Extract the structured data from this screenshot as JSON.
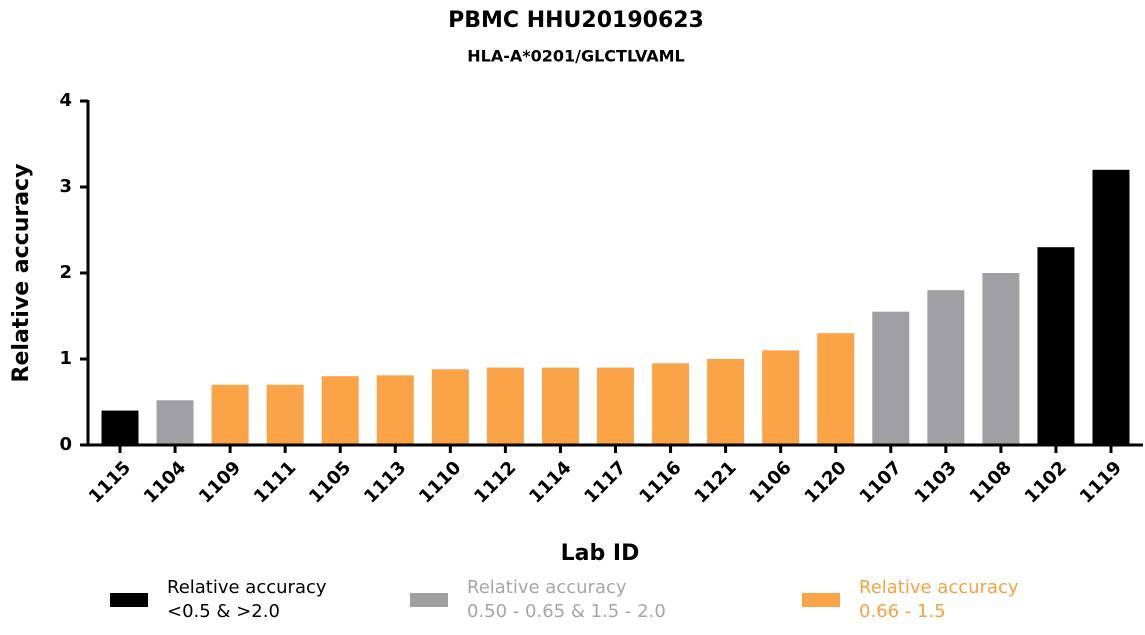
{
  "chart_data": {
    "type": "bar",
    "title": "PBMC HHU20190623",
    "subtitle": "HLA-A*0201/GLCTLVAML",
    "x_label": "Lab ID",
    "y_label": "Relative accuracy",
    "categories": [
      "1115",
      "1104",
      "1109",
      "1111",
      "1105",
      "1113",
      "1110",
      "1112",
      "1114",
      "1117",
      "1116",
      "1121",
      "1106",
      "1120",
      "1107",
      "1103",
      "1108",
      "1102",
      "1119"
    ],
    "values": [
      0.4,
      0.52,
      0.7,
      0.7,
      0.8,
      0.81,
      0.88,
      0.9,
      0.9,
      0.9,
      0.95,
      1.0,
      1.1,
      1.3,
      1.55,
      1.8,
      2.0,
      2.3,
      3.2
    ],
    "colors": [
      "#000000",
      "#a0a0a4",
      "#fba347",
      "#fba347",
      "#fba347",
      "#fba347",
      "#fba347",
      "#fba347",
      "#fba347",
      "#fba347",
      "#fba347",
      "#fba347",
      "#fba347",
      "#fba347",
      "#a0a0a4",
      "#a0a0a4",
      "#a0a0a4",
      "#000000",
      "#000000"
    ],
    "ylim": [
      0,
      4
    ],
    "yticks": [
      0,
      1,
      2,
      3,
      4
    ],
    "legend": [
      {
        "lines": [
          "Relative accuracy",
          "<0.5 & >2.0"
        ],
        "color": "#000000",
        "text_color": "#000000"
      },
      {
        "lines": [
          "Relative accuracy",
          "0.50 - 0.65 & 1.5 - 2.0"
        ],
        "color": "#a0a0a4",
        "text_color": "#a6a6a6"
      },
      {
        "lines": [
          "Relative accuracy",
          "0.66 - 1.5"
        ],
        "color": "#fba347",
        "text_color": "#f7a043"
      }
    ]
  }
}
